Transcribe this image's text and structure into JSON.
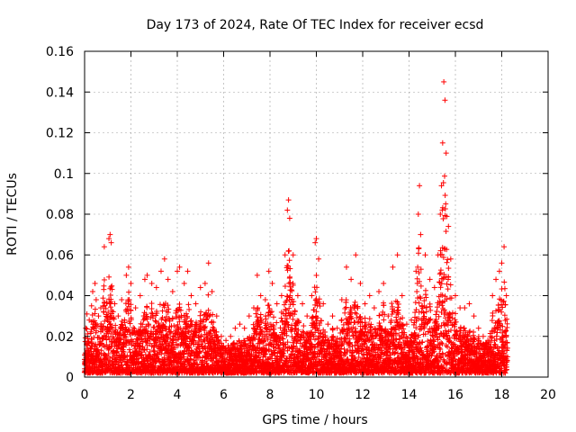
{
  "chart_data": {
    "type": "scatter",
    "title": "Day 173 of 2024, Rate Of TEC Index for receiver ecsd",
    "xlabel": "GPS time / hours",
    "ylabel": "ROTI / TECUs",
    "xlim": [
      0,
      20
    ],
    "ylim": [
      0,
      0.16
    ],
    "xticks": [
      0,
      2,
      4,
      6,
      8,
      10,
      12,
      14,
      16,
      18,
      20
    ],
    "xtick_labels": [
      "0",
      "2",
      "4",
      "6",
      "8",
      "10",
      "12",
      "14",
      "16",
      "18",
      "20"
    ],
    "yticks": [
      0,
      0.02,
      0.04,
      0.06,
      0.08,
      0.1,
      0.12,
      0.14,
      0.16
    ],
    "ytick_labels": [
      "0",
      "0.02",
      "0.04",
      "0.06",
      "0.08",
      "0.1",
      "0.12",
      "0.14",
      "0.16"
    ],
    "grid": true,
    "marker": "+",
    "color": "#ff0000",
    "x_extent_observed": [
      0,
      18.25
    ],
    "series": [
      {
        "points": [
          [
            0.05,
            0.024
          ],
          [
            0.1,
            0.031
          ],
          [
            0.2,
            0.028
          ],
          [
            0.3,
            0.035
          ],
          [
            0.35,
            0.042
          ],
          [
            0.45,
            0.046
          ],
          [
            0.5,
            0.038
          ],
          [
            0.6,
            0.03
          ],
          [
            0.7,
            0.034
          ],
          [
            0.85,
            0.064
          ],
          [
            1.05,
            0.068
          ],
          [
            1.1,
            0.07
          ],
          [
            1.15,
            0.066
          ],
          [
            1.3,
            0.036
          ],
          [
            1.45,
            0.03
          ],
          [
            1.6,
            0.038
          ],
          [
            1.8,
            0.05
          ],
          [
            1.9,
            0.054
          ],
          [
            2.0,
            0.046
          ],
          [
            2.2,
            0.034
          ],
          [
            2.4,
            0.04
          ],
          [
            2.6,
            0.048
          ],
          [
            2.7,
            0.05
          ],
          [
            2.9,
            0.046
          ],
          [
            3.1,
            0.044
          ],
          [
            3.3,
            0.052
          ],
          [
            3.45,
            0.058
          ],
          [
            3.6,
            0.048
          ],
          [
            3.8,
            0.042
          ],
          [
            4.0,
            0.052
          ],
          [
            4.1,
            0.054
          ],
          [
            4.3,
            0.046
          ],
          [
            4.45,
            0.052
          ],
          [
            4.6,
            0.04
          ],
          [
            4.8,
            0.036
          ],
          [
            5.0,
            0.044
          ],
          [
            5.2,
            0.046
          ],
          [
            5.35,
            0.056
          ],
          [
            5.5,
            0.042
          ],
          [
            5.7,
            0.03
          ],
          [
            5.9,
            0.02
          ],
          [
            6.1,
            0.018
          ],
          [
            6.3,
            0.02
          ],
          [
            6.5,
            0.024
          ],
          [
            6.7,
            0.026
          ],
          [
            6.9,
            0.024
          ],
          [
            7.1,
            0.03
          ],
          [
            7.3,
            0.034
          ],
          [
            7.45,
            0.05
          ],
          [
            7.6,
            0.04
          ],
          [
            7.8,
            0.038
          ],
          [
            7.95,
            0.052
          ],
          [
            8.1,
            0.046
          ],
          [
            8.3,
            0.036
          ],
          [
            8.5,
            0.04
          ],
          [
            8.65,
            0.06
          ],
          [
            8.75,
            0.082
          ],
          [
            8.8,
            0.087
          ],
          [
            8.85,
            0.078
          ],
          [
            9.0,
            0.06
          ],
          [
            9.2,
            0.04
          ],
          [
            9.4,
            0.036
          ],
          [
            9.6,
            0.03
          ],
          [
            9.8,
            0.04
          ],
          [
            9.95,
            0.066
          ],
          [
            10.0,
            0.068
          ],
          [
            10.1,
            0.058
          ],
          [
            10.3,
            0.036
          ],
          [
            10.5,
            0.026
          ],
          [
            10.7,
            0.03
          ],
          [
            10.9,
            0.024
          ],
          [
            11.1,
            0.038
          ],
          [
            11.3,
            0.054
          ],
          [
            11.5,
            0.048
          ],
          [
            11.7,
            0.06
          ],
          [
            11.9,
            0.046
          ],
          [
            12.1,
            0.036
          ],
          [
            12.3,
            0.04
          ],
          [
            12.5,
            0.034
          ],
          [
            12.7,
            0.042
          ],
          [
            12.9,
            0.046
          ],
          [
            13.1,
            0.03
          ],
          [
            13.3,
            0.054
          ],
          [
            13.5,
            0.06
          ],
          [
            13.7,
            0.04
          ],
          [
            13.9,
            0.026
          ],
          [
            14.1,
            0.028
          ],
          [
            14.3,
            0.052
          ],
          [
            14.4,
            0.08
          ],
          [
            14.45,
            0.094
          ],
          [
            14.5,
            0.07
          ],
          [
            14.7,
            0.06
          ],
          [
            14.9,
            0.048
          ],
          [
            15.1,
            0.044
          ],
          [
            15.25,
            0.06
          ],
          [
            15.35,
            0.08
          ],
          [
            15.4,
            0.094
          ],
          [
            15.45,
            0.115
          ],
          [
            15.5,
            0.145
          ],
          [
            15.55,
            0.136
          ],
          [
            15.6,
            0.11
          ],
          [
            15.7,
            0.074
          ],
          [
            15.8,
            0.058
          ],
          [
            16.0,
            0.04
          ],
          [
            16.2,
            0.034
          ],
          [
            16.4,
            0.034
          ],
          [
            16.6,
            0.036
          ],
          [
            16.8,
            0.03
          ],
          [
            17.0,
            0.024
          ],
          [
            17.2,
            0.02
          ],
          [
            17.4,
            0.018
          ],
          [
            17.6,
            0.04
          ],
          [
            17.75,
            0.048
          ],
          [
            17.9,
            0.052
          ],
          [
            18.0,
            0.056
          ],
          [
            18.1,
            0.064
          ],
          [
            18.2,
            0.04
          ],
          [
            18.25,
            0.01
          ]
        ]
      }
    ]
  }
}
